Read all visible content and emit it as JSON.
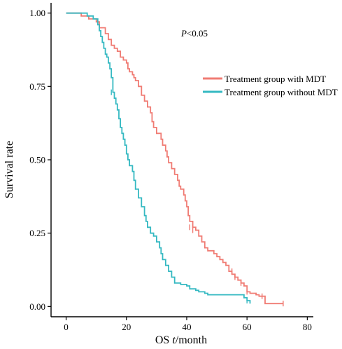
{
  "chart_data": {
    "type": "line",
    "title": "",
    "xlabel": "OS t/month",
    "ylabel": "Survival rate",
    "xlim": [
      -5,
      82
    ],
    "ylim": [
      -0.035,
      1.035
    ],
    "xticks": [
      0,
      20,
      40,
      60,
      80
    ],
    "yticks": [
      0.0,
      0.25,
      0.5,
      0.75,
      1.0
    ],
    "xtick_labels": [
      "0",
      "20",
      "40",
      "60",
      "80"
    ],
    "ytick_labels": [
      "0.00",
      "0.25",
      "0.50",
      "0.75",
      "1.00"
    ],
    "grid": false,
    "legend_position": "right",
    "annotation": {
      "italic": "P",
      "rest": "<0.05",
      "x": 40,
      "y": 0.93
    },
    "series": [
      {
        "name": "Treatment group with MDT",
        "color": "#f07c74",
        "step": true,
        "points": [
          [
            0,
            1.0
          ],
          [
            5,
            0.99
          ],
          [
            7.5,
            0.98
          ],
          [
            10,
            0.97
          ],
          [
            11,
            0.95
          ],
          [
            13,
            0.93
          ],
          [
            14,
            0.91
          ],
          [
            15,
            0.89
          ],
          [
            16,
            0.88
          ],
          [
            17,
            0.87
          ],
          [
            18,
            0.85
          ],
          [
            19,
            0.84
          ],
          [
            20,
            0.83
          ],
          [
            20.5,
            0.81
          ],
          [
            21,
            0.8
          ],
          [
            22,
            0.79
          ],
          [
            22.5,
            0.78
          ],
          [
            23,
            0.77
          ],
          [
            24,
            0.75
          ],
          [
            25,
            0.72
          ],
          [
            26,
            0.7
          ],
          [
            27,
            0.68
          ],
          [
            28,
            0.66
          ],
          [
            28.5,
            0.63
          ],
          [
            29,
            0.61
          ],
          [
            30,
            0.59
          ],
          [
            31.5,
            0.57
          ],
          [
            32,
            0.55
          ],
          [
            33,
            0.53
          ],
          [
            33.5,
            0.51
          ],
          [
            34,
            0.49
          ],
          [
            35,
            0.47
          ],
          [
            36,
            0.45
          ],
          [
            37,
            0.43
          ],
          [
            37.5,
            0.41
          ],
          [
            38,
            0.4
          ],
          [
            39,
            0.38
          ],
          [
            39.5,
            0.36
          ],
          [
            40,
            0.34
          ],
          [
            40.5,
            0.31
          ],
          [
            41,
            0.29
          ],
          [
            42,
            0.27
          ],
          [
            43,
            0.26
          ],
          [
            44,
            0.24
          ],
          [
            45,
            0.22
          ],
          [
            46,
            0.2
          ],
          [
            47,
            0.19
          ],
          [
            49,
            0.18
          ],
          [
            50,
            0.17
          ],
          [
            51,
            0.16
          ],
          [
            52,
            0.15
          ],
          [
            53,
            0.14
          ],
          [
            54,
            0.12
          ],
          [
            55,
            0.11
          ],
          [
            56,
            0.1
          ],
          [
            57,
            0.09
          ],
          [
            58,
            0.08
          ],
          [
            59,
            0.07
          ],
          [
            60,
            0.05
          ],
          [
            61,
            0.045
          ],
          [
            63,
            0.04
          ],
          [
            64,
            0.035
          ],
          [
            66,
            0.01
          ],
          [
            72,
            0.01
          ]
        ],
        "censors": [
          [
            41,
            0.27
          ],
          [
            42,
            0.26
          ],
          [
            55,
            0.12
          ],
          [
            56,
            0.1
          ],
          [
            58,
            0.08
          ],
          [
            60,
            0.05
          ],
          [
            65,
            0.035
          ],
          [
            72,
            0.01
          ]
        ]
      },
      {
        "name": "Treatment group without MDT",
        "color": "#35b9c2",
        "step": true,
        "points": [
          [
            0,
            1.0
          ],
          [
            7,
            0.99
          ],
          [
            9,
            0.98
          ],
          [
            10.5,
            0.96
          ],
          [
            11,
            0.94
          ],
          [
            11.5,
            0.92
          ],
          [
            12,
            0.9
          ],
          [
            12.5,
            0.88
          ],
          [
            13,
            0.86
          ],
          [
            13.5,
            0.85
          ],
          [
            14,
            0.83
          ],
          [
            14.5,
            0.81
          ],
          [
            15,
            0.78
          ],
          [
            15.5,
            0.73
          ],
          [
            16,
            0.71
          ],
          [
            16.5,
            0.69
          ],
          [
            17,
            0.67
          ],
          [
            17.5,
            0.64
          ],
          [
            18,
            0.61
          ],
          [
            18.5,
            0.59
          ],
          [
            19,
            0.57
          ],
          [
            19.5,
            0.55
          ],
          [
            20,
            0.52
          ],
          [
            20.5,
            0.5
          ],
          [
            21,
            0.48
          ],
          [
            22,
            0.46
          ],
          [
            22.5,
            0.43
          ],
          [
            23,
            0.4
          ],
          [
            24,
            0.37
          ],
          [
            25,
            0.34
          ],
          [
            26,
            0.31
          ],
          [
            26.5,
            0.29
          ],
          [
            27,
            0.27
          ],
          [
            28,
            0.25
          ],
          [
            29,
            0.24
          ],
          [
            30,
            0.22
          ],
          [
            31,
            0.2
          ],
          [
            31.5,
            0.18
          ],
          [
            32,
            0.16
          ],
          [
            33,
            0.14
          ],
          [
            34,
            0.12
          ],
          [
            35,
            0.1
          ],
          [
            36,
            0.08
          ],
          [
            38,
            0.075
          ],
          [
            40,
            0.07
          ],
          [
            41,
            0.06
          ],
          [
            43,
            0.055
          ],
          [
            44,
            0.05
          ],
          [
            46,
            0.045
          ],
          [
            47,
            0.04
          ],
          [
            59,
            0.03
          ],
          [
            60,
            0.02
          ],
          [
            61,
            0.01
          ]
        ],
        "censors": [
          [
            15,
            0.73
          ],
          [
            60,
            0.02
          ]
        ]
      }
    ]
  }
}
